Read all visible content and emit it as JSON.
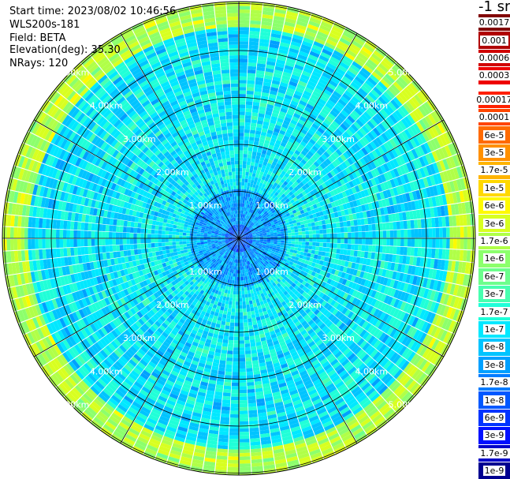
{
  "info": {
    "start_time": "Start time: 2023/08/02 10:46:56",
    "instrument": "WLS200s-181",
    "field": "Field: BETA",
    "elevation": "Elevation(deg): 35.30",
    "nrays": "NRays: 120"
  },
  "colorbar": {
    "unit": "-1 sr",
    "entries": [
      {
        "label": "0.0017",
        "color": "#800000"
      },
      {
        "label": "0.001",
        "color": "#b00000"
      },
      {
        "label": "0.0006",
        "color": "#d00000"
      },
      {
        "label": "0.0003",
        "color": "#ee0000"
      },
      {
        "label": "0.00017",
        "color": "#ff2000"
      },
      {
        "label": "0.0001",
        "color": "#ff4500"
      },
      {
        "label": "6e-5",
        "color": "#ff6a00"
      },
      {
        "label": "3e-5",
        "color": "#ff9000"
      },
      {
        "label": "1.7e-5",
        "color": "#ffb400"
      },
      {
        "label": "1e-5",
        "color": "#ffd800"
      },
      {
        "label": "6e-6",
        "color": "#fffa00"
      },
      {
        "label": "3e-6",
        "color": "#d8ff20"
      },
      {
        "label": "1.7e-6",
        "color": "#b0ff48"
      },
      {
        "label": "1e-6",
        "color": "#8cff6c"
      },
      {
        "label": "6e-7",
        "color": "#6cff8c"
      },
      {
        "label": "3e-7",
        "color": "#48ffb0"
      },
      {
        "label": "1.7e-7",
        "color": "#20ffd8"
      },
      {
        "label": "1e-7",
        "color": "#00e8ff"
      },
      {
        "label": "6e-8",
        "color": "#00c4ff"
      },
      {
        "label": "3e-8",
        "color": "#00a0ff"
      },
      {
        "label": "1.7e-8",
        "color": "#007cff"
      },
      {
        "label": "1e-8",
        "color": "#0058ff"
      },
      {
        "label": "6e-9",
        "color": "#0034ff"
      },
      {
        "label": "3e-9",
        "color": "#0010ff"
      },
      {
        "label": "1.7e-9",
        "color": "#0000c8"
      },
      {
        "label": "1e-9",
        "color": "#000090"
      }
    ]
  },
  "chart_data": {
    "type": "heatmap",
    "projection": "polar (PPI scan)",
    "field": "BETA",
    "nrays": 120,
    "range_rings": [
      "1.00km",
      "2.00km",
      "3.00km",
      "4.00km",
      "5.00km"
    ],
    "radial_lines_every_deg": 30,
    "color_scale": "log",
    "value_range": [
      1e-09,
      0.0017
    ],
    "pattern": {
      "description": "attenuated backscatter by range",
      "by_range_km": [
        {
          "range": [
            0.0,
            0.3
          ],
          "level": "1e-8"
        },
        {
          "range": [
            0.3,
            1.0
          ],
          "level": "3e-8"
        },
        {
          "range": [
            1.0,
            2.0
          ],
          "level": "1e-7"
        },
        {
          "range": [
            2.0,
            4.5
          ],
          "level": "1e-7"
        },
        {
          "range": [
            4.5,
            5.5
          ],
          "level": "1.7e-6"
        }
      ]
    }
  }
}
